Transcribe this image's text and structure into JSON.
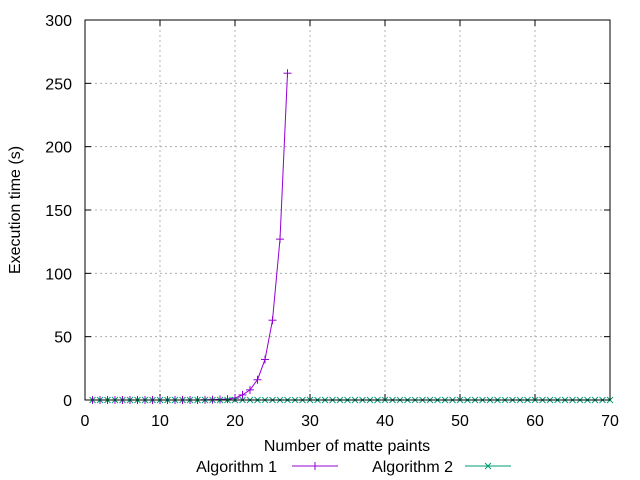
{
  "chart_data": {
    "type": "line",
    "title": "",
    "xlabel": "Number of matte paints",
    "ylabel": "Execution time (s)",
    "xlim": [
      0,
      70
    ],
    "ylim": [
      0,
      300
    ],
    "xticks": [
      0,
      10,
      20,
      30,
      40,
      50,
      60,
      70
    ],
    "yticks": [
      0,
      50,
      100,
      150,
      200,
      250,
      300
    ],
    "x_tick_labels": [
      "0",
      "10",
      "20",
      "30",
      "40",
      "50",
      "60",
      "70"
    ],
    "y_tick_labels": [
      "0",
      "50",
      "100",
      "150",
      "200",
      "250",
      "300"
    ],
    "grid": true,
    "legend_position": "bottom",
    "series": [
      {
        "name": "Algorithm 1",
        "color": "#9400d3",
        "marker": "plus",
        "x": [
          1,
          2,
          3,
          4,
          5,
          6,
          7,
          8,
          9,
          10,
          11,
          12,
          13,
          14,
          15,
          16,
          17,
          18,
          19,
          20,
          21,
          22,
          23,
          24,
          25,
          26,
          27
        ],
        "y": [
          0,
          0,
          0,
          0,
          0,
          0,
          0,
          0,
          0,
          0,
          0,
          0,
          0,
          0,
          0,
          0.1,
          0.2,
          0.4,
          0.7,
          1.5,
          4,
          8,
          16,
          32,
          63,
          127,
          258
        ]
      },
      {
        "name": "Algorithm 2",
        "color": "#009e73",
        "marker": "cross",
        "x": [
          1,
          2,
          3,
          4,
          5,
          6,
          7,
          8,
          9,
          10,
          11,
          12,
          13,
          14,
          15,
          16,
          17,
          18,
          19,
          20,
          21,
          22,
          23,
          24,
          25,
          26,
          27,
          28,
          29,
          30,
          31,
          32,
          33,
          34,
          35,
          36,
          37,
          38,
          39,
          40,
          41,
          42,
          43,
          44,
          45,
          46,
          47,
          48,
          49,
          50,
          51,
          52,
          53,
          54,
          55,
          56,
          57,
          58,
          59,
          60,
          61,
          62,
          63,
          64,
          65,
          66,
          67,
          68,
          69,
          70
        ],
        "y": [
          0,
          0,
          0,
          0,
          0,
          0,
          0,
          0,
          0,
          0,
          0,
          0,
          0,
          0,
          0,
          0,
          0,
          0,
          0,
          0,
          0,
          0,
          0,
          0,
          0,
          0,
          0,
          0,
          0,
          0,
          0,
          0,
          0,
          0,
          0,
          0,
          0,
          0,
          0,
          0,
          0,
          0,
          0,
          0,
          0,
          0,
          0,
          0,
          0,
          0,
          0,
          0,
          0,
          0,
          0,
          0,
          0,
          0,
          0,
          0,
          0,
          0,
          0,
          0,
          0,
          0,
          0,
          0,
          0,
          0
        ]
      }
    ]
  }
}
